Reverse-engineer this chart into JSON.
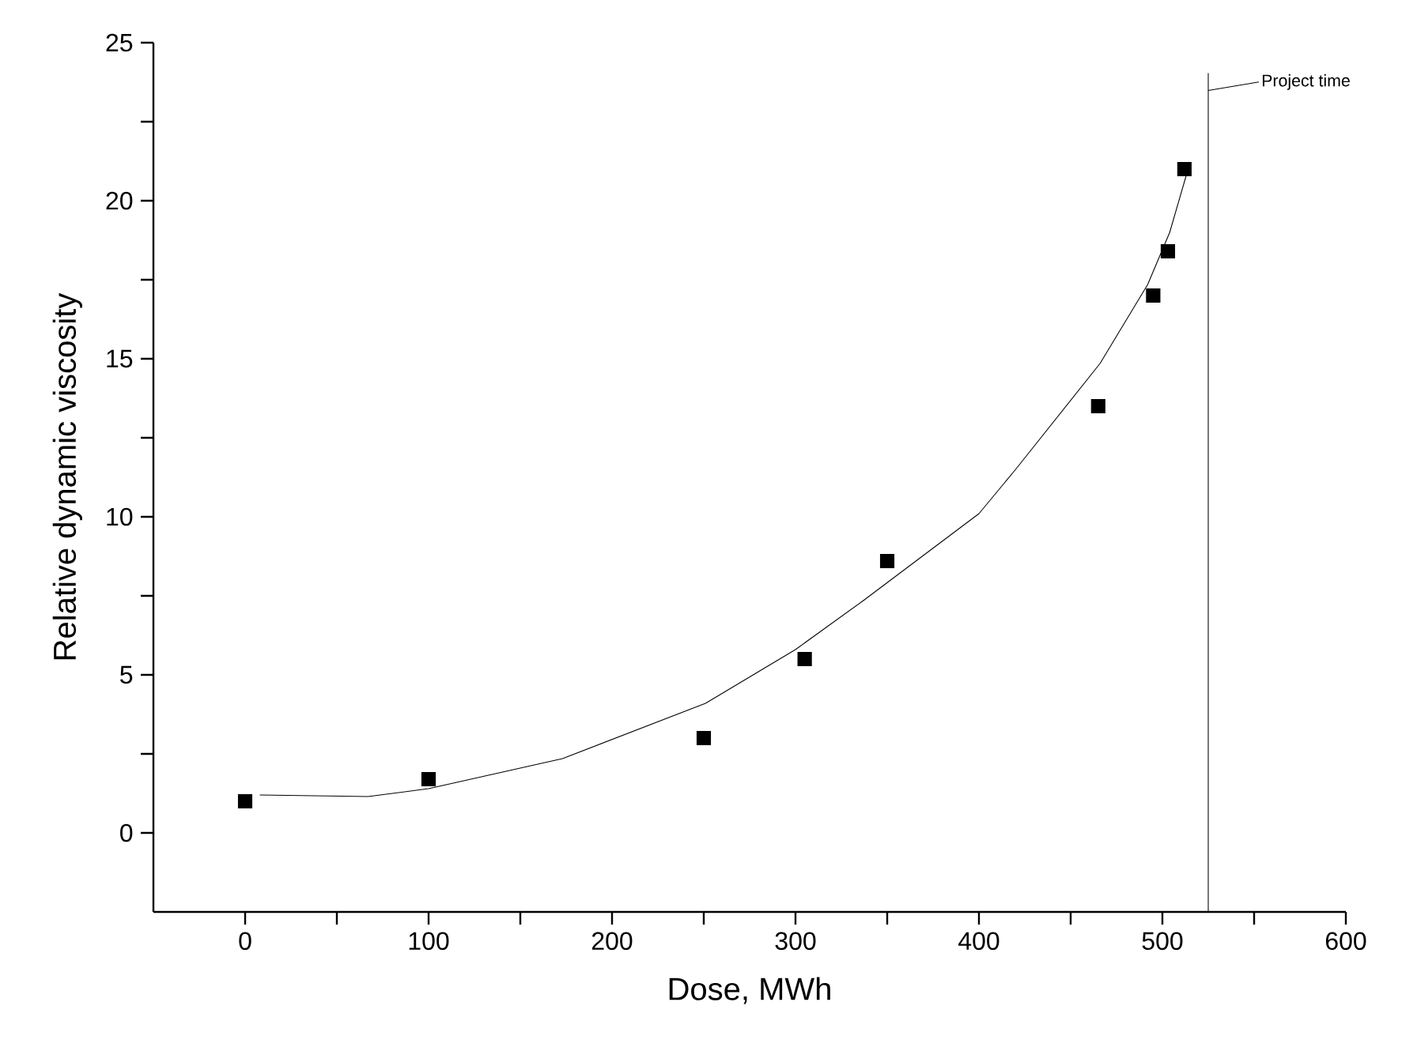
{
  "chart_data": {
    "type": "scatter",
    "xlabel": "Dose, MWh",
    "ylabel": "Relative dynamic viscosity",
    "xlim": [
      -50,
      600
    ],
    "ylim": [
      -2.5,
      25
    ],
    "xticks": [
      0,
      {
        "value": 50,
        "label": null
      },
      100,
      {
        "value": 150,
        "label": null
      },
      200,
      {
        "value": 250,
        "label": null
      },
      300,
      {
        "value": 350,
        "label": null
      },
      400,
      {
        "value": 450,
        "label": null
      },
      500,
      {
        "value": 550,
        "label": null
      },
      600
    ],
    "yticks": [
      0,
      {
        "value": 2.5,
        "label": null
      },
      5,
      {
        "value": 7.5,
        "label": null
      },
      10,
      {
        "value": 12.5,
        "label": null
      },
      15,
      {
        "value": 17.5,
        "label": null
      },
      20,
      {
        "value": 22.5,
        "label": null
      },
      25
    ],
    "series": [
      {
        "marker": "square",
        "color": "#000000",
        "x": [
          0,
          100,
          250,
          305,
          350,
          465,
          495,
          503,
          512
        ],
        "values": [
          1.0,
          1.7,
          3.0,
          5.5,
          8.6,
          13.5,
          17.0,
          18.4,
          21.0
        ]
      },
      {
        "type": "line",
        "marker": "none",
        "color": "#000000",
        "x": [
          8,
          67,
          100,
          173,
          251,
          300,
          337,
          400,
          420,
          466,
          492,
          504,
          514
        ],
        "values": [
          1.2,
          1.15,
          1.4,
          2.35,
          4.1,
          5.8,
          7.35,
          10.1,
          11.5,
          14.85,
          17.35,
          19.0,
          21.0
        ]
      }
    ],
    "ref_lines": [
      {
        "axis": "x",
        "value": 525,
        "label": "Project time"
      }
    ]
  }
}
